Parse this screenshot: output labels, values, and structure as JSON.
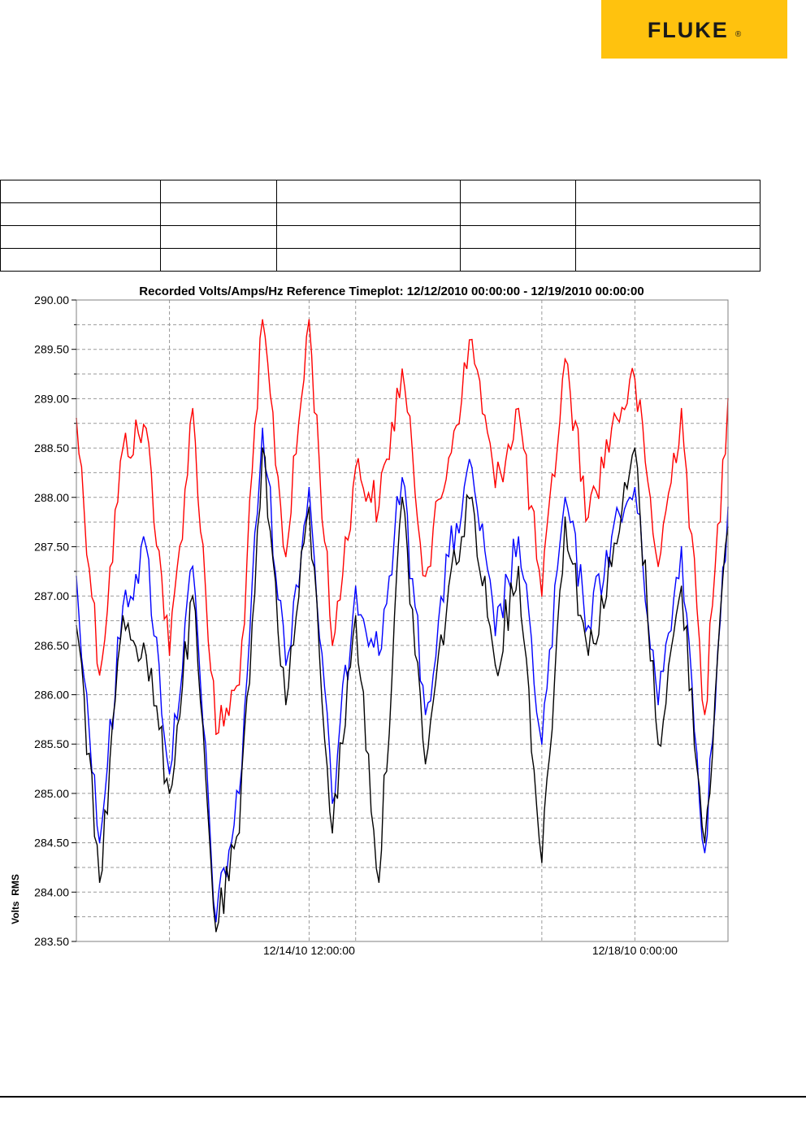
{
  "logo": {
    "text": "FLUKE",
    "mark": "®",
    "color": "#ffc20e"
  },
  "info_table": {
    "rows": [
      [
        "",
        "",
        "",
        "",
        ""
      ],
      [
        "",
        "",
        "",
        "",
        ""
      ],
      [
        "",
        "",
        "",
        "",
        ""
      ],
      [
        "",
        "",
        "",
        "",
        ""
      ]
    ]
  },
  "chart_data": {
    "type": "line",
    "title": "Recorded Volts/Amps/Hz Reference Timeplot: 12/12/2010 00:00:00 - 12/19/2010 00:00:00",
    "xlabel": "",
    "ylabel": "Volts  RMS",
    "x_range": [
      "12/12/2010 00:00:00",
      "12/19/2010 00:00:00"
    ],
    "x_ticks": [
      {
        "at": "12/14/10 12:00:00",
        "label": "12/14/10 12:00:00"
      },
      {
        "at": "12/18/10 0:00:00",
        "label": "12/18/10 0:00:00"
      }
    ],
    "x_grid": [
      "12/13/10 0:00:00",
      "12/15/10 0:00:00",
      "12/17/10 0:00:00",
      "12/19/10 0:00:00"
    ],
    "ylim": [
      283.5,
      290.0
    ],
    "y_ticks": [
      290.0,
      289.5,
      289.0,
      288.5,
      288.0,
      287.5,
      287.0,
      286.5,
      286.0,
      285.5,
      285.0,
      284.5,
      284.0,
      283.5
    ],
    "y_tick_labels": [
      "290.00",
      "289.50",
      "289.00",
      "288.50",
      "288.00",
      "287.50",
      "287.00",
      "286.50",
      "286.00",
      "285.50",
      "285.00",
      "284.50",
      "284.00",
      "283.50"
    ],
    "grid": true,
    "legend": "none",
    "series": [
      {
        "color": "#ff0000",
        "x": [
          "12/12/10 0:00",
          "12/12/10 6:00",
          "12/12/10 12:00",
          "12/12/10 18:00",
          "12/13/10 0:00",
          "12/13/10 6:00",
          "12/13/10 12:00",
          "12/13/10 18:00",
          "12/14/10 0:00",
          "12/14/10 6:00",
          "12/14/10 12:00",
          "12/14/10 18:00",
          "12/15/10 0:00",
          "12/15/10 6:00",
          "12/15/10 12:00",
          "12/15/10 18:00",
          "12/16/10 0:00",
          "12/16/10 6:00",
          "12/16/10 12:00",
          "12/16/10 18:00",
          "12/17/10 0:00",
          "12/17/10 6:00",
          "12/17/10 12:00",
          "12/17/10 18:00",
          "12/18/10 0:00",
          "12/18/10 6:00",
          "12/18/10 12:00",
          "12/18/10 18:00",
          "12/19/10 0:00"
        ],
        "values": [
          288.8,
          286.2,
          288.5,
          288.7,
          286.4,
          288.9,
          285.6,
          286.1,
          289.8,
          287.4,
          289.8,
          286.5,
          288.3,
          287.9,
          289.3,
          287.2,
          288.4,
          289.6,
          288.1,
          288.9,
          287.0,
          289.4,
          287.8,
          288.7,
          289.2,
          287.3,
          288.9,
          285.8,
          289.0
        ]
      },
      {
        "color": "#0000ff",
        "x": [
          "12/12/10 0:00",
          "12/12/10 6:00",
          "12/12/10 12:00",
          "12/12/10 18:00",
          "12/13/10 0:00",
          "12/13/10 6:00",
          "12/13/10 12:00",
          "12/13/10 18:00",
          "12/14/10 0:00",
          "12/14/10 6:00",
          "12/14/10 12:00",
          "12/14/10 18:00",
          "12/15/10 0:00",
          "12/15/10 6:00",
          "12/15/10 12:00",
          "12/15/10 18:00",
          "12/16/10 0:00",
          "12/16/10 6:00",
          "12/16/10 12:00",
          "12/16/10 18:00",
          "12/17/10 0:00",
          "12/17/10 6:00",
          "12/17/10 12:00",
          "12/17/10 18:00",
          "12/18/10 0:00",
          "12/18/10 6:00",
          "12/18/10 12:00",
          "12/18/10 18:00",
          "12/19/10 0:00"
        ],
        "values": [
          287.2,
          284.5,
          286.9,
          287.5,
          285.2,
          287.3,
          283.7,
          285.0,
          288.7,
          286.3,
          288.1,
          284.9,
          287.1,
          286.4,
          288.2,
          285.8,
          287.4,
          288.3,
          286.6,
          287.6,
          285.5,
          288.0,
          286.7,
          287.6,
          288.1,
          285.9,
          287.5,
          284.4,
          287.9
        ]
      },
      {
        "color": "#000000",
        "x": [
          "12/12/10 0:00",
          "12/12/10 6:00",
          "12/12/10 12:00",
          "12/12/10 18:00",
          "12/13/10 0:00",
          "12/13/10 6:00",
          "12/13/10 12:00",
          "12/13/10 18:00",
          "12/14/10 0:00",
          "12/14/10 6:00",
          "12/14/10 12:00",
          "12/14/10 18:00",
          "12/15/10 0:00",
          "12/15/10 6:00",
          "12/15/10 12:00",
          "12/15/10 18:00",
          "12/16/10 0:00",
          "12/16/10 6:00",
          "12/16/10 12:00",
          "12/16/10 18:00",
          "12/17/10 0:00",
          "12/17/10 6:00",
          "12/17/10 12:00",
          "12/17/10 18:00",
          "12/18/10 0:00",
          "12/18/10 6:00",
          "12/18/10 12:00",
          "12/18/10 18:00",
          "12/19/10 0:00"
        ],
        "values": [
          286.7,
          284.1,
          286.8,
          286.4,
          285.0,
          287.0,
          283.6,
          284.6,
          288.5,
          285.9,
          287.9,
          284.6,
          286.8,
          284.1,
          288.0,
          285.3,
          287.1,
          288.0,
          286.3,
          287.3,
          284.3,
          287.8,
          286.4,
          287.3,
          288.5,
          285.5,
          287.1,
          284.5,
          287.7
        ]
      }
    ]
  }
}
